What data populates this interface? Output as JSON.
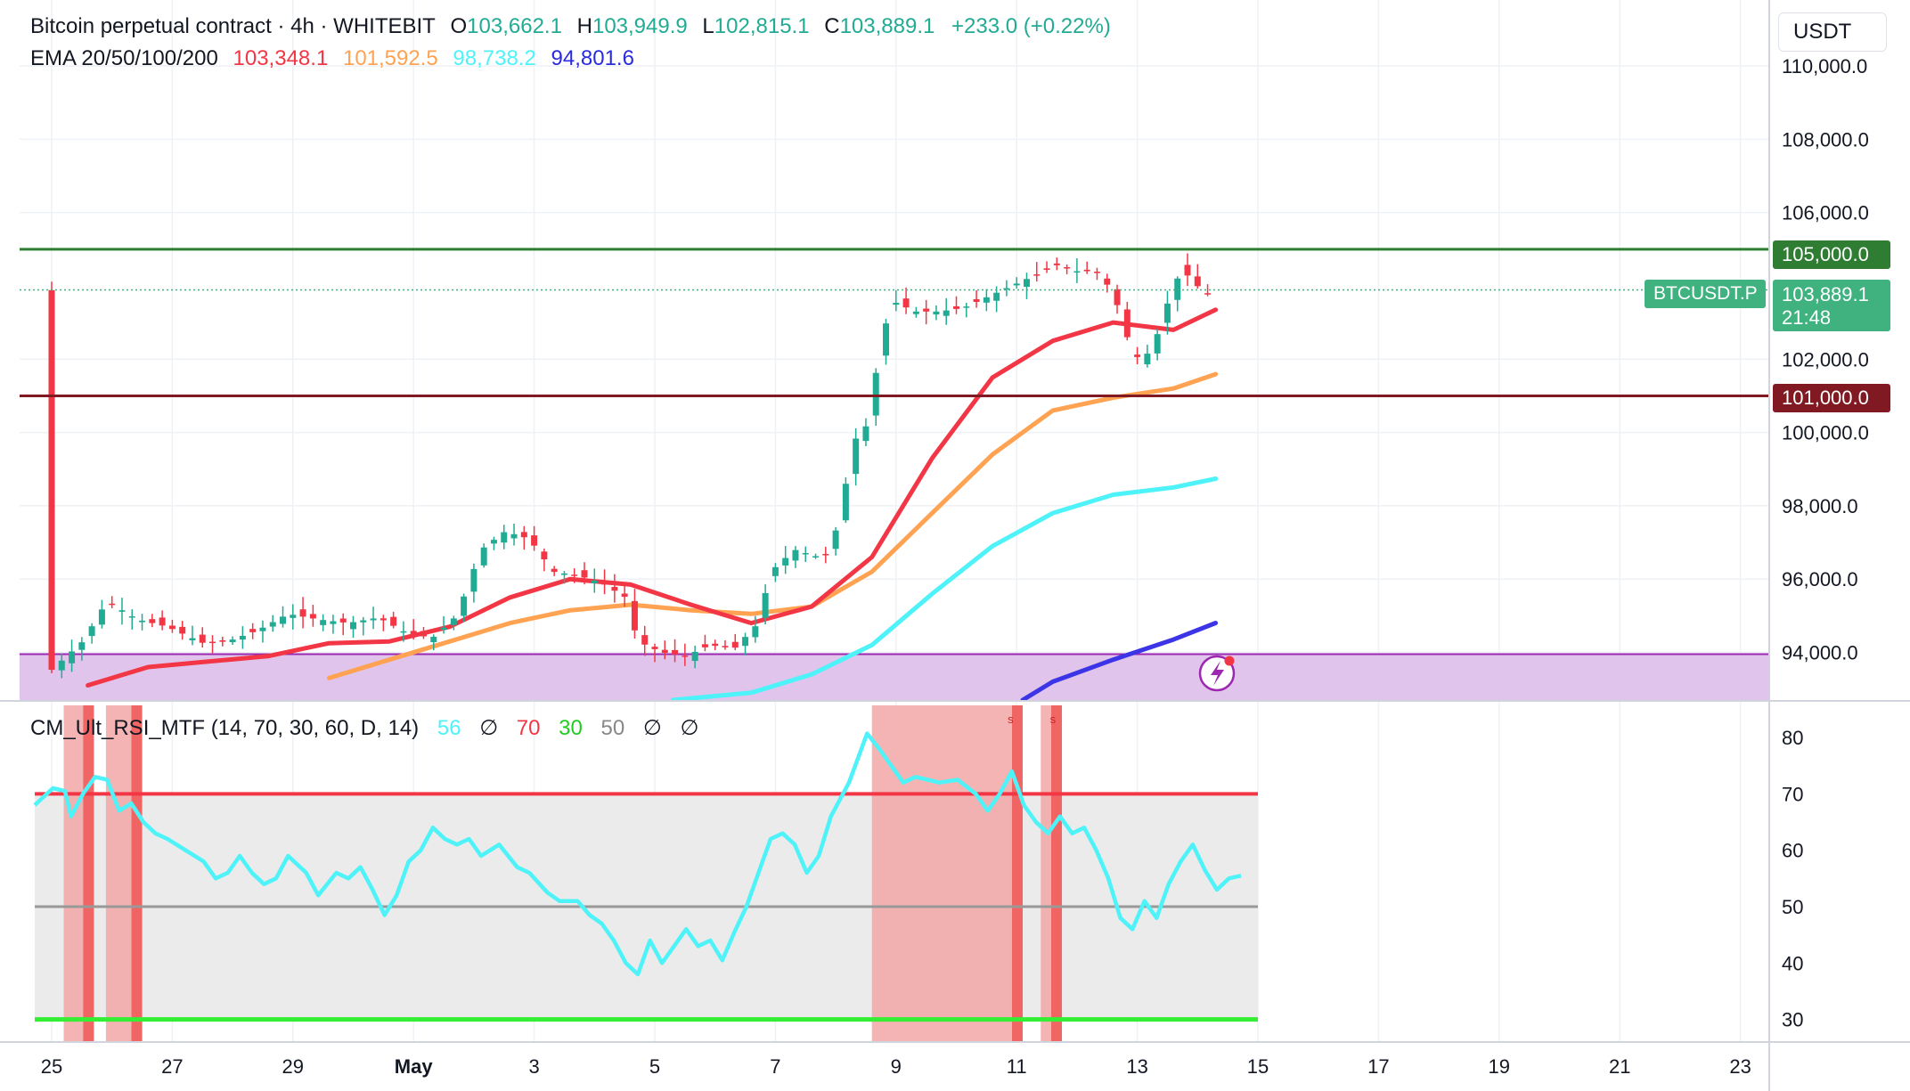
{
  "header": {
    "instrument": "Bitcoin perpetual contract · 4h · WHITEBIT",
    "ohlc": {
      "o_label": "O",
      "o": "103,662.1",
      "h_label": "H",
      "h": "103,949.9",
      "l_label": "L",
      "l": "102,815.1",
      "c_label": "C",
      "c": "103,889.1",
      "change": "+233.0 (+0.22%)"
    },
    "ema_label": "EMA 20/50/100/200",
    "ema_values": [
      "103,348.1",
      "101,592.5",
      "98,738.2",
      "94,801.6"
    ]
  },
  "currency": "USDT",
  "price_tags": {
    "resistance": "105,000.0",
    "support": "101,000.0",
    "symbol": "BTCUSDT.P",
    "last_price": "103,889.1",
    "countdown": "21:48"
  },
  "rsi_legend": {
    "name": "CM_Ult_RSI_MTF (14, 70, 30, 60, D, 14)",
    "value": "56",
    "na1": "∅",
    "ob": "70",
    "os": "30",
    "mid": "50",
    "na2": "∅",
    "na3": "∅"
  },
  "colors": {
    "up": "#22ab94",
    "down": "#f23645",
    "ema20": "#f23645",
    "ema50": "#ffa252",
    "ema100": "#4df3f8",
    "ema200": "#3b35e6",
    "resistance_line": "#2e7d32",
    "support_line": "#801922",
    "zone_fill": "#e1c4ec",
    "rsi_line": "#4df3f8",
    "rsi_ob_line": "#f23645",
    "rsi_os_line": "#33ee33",
    "rsi_mid_line": "#999999",
    "rsi_band": "#ebebeb",
    "rsi_highlight": "#f3a7a7"
  },
  "chart_data": [
    {
      "type": "candlestick",
      "title": "Bitcoin perpetual contract · 4h · WHITEBIT",
      "ylabel": "USDT",
      "ylim": [
        92700,
        111800
      ],
      "y_ticks": [
        "110,000.0",
        "108,000.0",
        "106,000.0",
        "102,000.0",
        "100,000.0",
        "98,000.0",
        "96,000.0",
        "94,000.0"
      ],
      "y_tick_values": [
        110000,
        108000,
        106000,
        102000,
        100000,
        98000,
        96000,
        94000
      ],
      "x_ticks": [
        "25",
        "27",
        "29",
        "May",
        "3",
        "5",
        "7",
        "9",
        "11",
        "13",
        "15",
        "17",
        "19",
        "21",
        "23"
      ],
      "x_tick_days": [
        0,
        2,
        4,
        6,
        8,
        10,
        12,
        14,
        16,
        18,
        20,
        22,
        24,
        26,
        28
      ],
      "x_unit": "days since Apr 25 00:00 (4h bars)",
      "horizontal_levels": [
        105000,
        101000
      ],
      "zone": [
        92700,
        93950
      ],
      "candles_ohlc": [],
      "ema": {
        "periods": [
          20,
          50,
          100,
          200
        ],
        "ema20": [
          [
            0.6,
            93100
          ],
          [
            1.6,
            93600
          ],
          [
            2.6,
            93750
          ],
          [
            3.6,
            93900
          ],
          [
            4.6,
            94250
          ],
          [
            5.6,
            94300
          ],
          [
            6.6,
            94700
          ],
          [
            7.6,
            95500
          ],
          [
            8.6,
            96000
          ],
          [
            9.6,
            95850
          ],
          [
            10.6,
            95300
          ],
          [
            11.6,
            94800
          ],
          [
            12.6,
            95250
          ],
          [
            13.6,
            96600
          ],
          [
            14.6,
            99300
          ],
          [
            15.6,
            101500
          ],
          [
            16.6,
            102500
          ],
          [
            17.6,
            103000
          ],
          [
            18.6,
            102800
          ],
          [
            19.3,
            103348
          ]
        ],
        "ema50": [
          [
            4.6,
            93300
          ],
          [
            5.6,
            93800
          ],
          [
            6.6,
            94300
          ],
          [
            7.6,
            94800
          ],
          [
            8.6,
            95150
          ],
          [
            9.6,
            95300
          ],
          [
            10.6,
            95150
          ],
          [
            11.6,
            95050
          ],
          [
            12.6,
            95250
          ],
          [
            13.6,
            96200
          ],
          [
            14.6,
            97800
          ],
          [
            15.6,
            99400
          ],
          [
            16.6,
            100600
          ],
          [
            17.6,
            100950
          ],
          [
            18.6,
            101200
          ],
          [
            19.3,
            101592
          ]
        ],
        "ema100": [
          [
            10.3,
            92700
          ],
          [
            11.6,
            92900
          ],
          [
            12.6,
            93400
          ],
          [
            13.6,
            94200
          ],
          [
            14.6,
            95600
          ],
          [
            15.6,
            96900
          ],
          [
            16.6,
            97800
          ],
          [
            17.6,
            98300
          ],
          [
            18.6,
            98500
          ],
          [
            19.3,
            98738
          ]
        ],
        "ema200": [
          [
            16.1,
            92700
          ],
          [
            16.6,
            93200
          ],
          [
            17.6,
            93800
          ],
          [
            18.6,
            94350
          ],
          [
            19.3,
            94802
          ]
        ]
      }
    },
    {
      "type": "line",
      "title": "CM_Ult_RSI_MTF (14, 70, 30, 60, D, 14)",
      "ylim": [
        26,
        86
      ],
      "y_ticks": [
        "80",
        "70",
        "60",
        "50",
        "40",
        "30"
      ],
      "y_tick_values": [
        80,
        70,
        60,
        50,
        40,
        30
      ],
      "levels": {
        "overbought": 70,
        "oversold": 30,
        "mid": 50
      },
      "rsi_series": [
        [
          0,
          68
        ],
        [
          0.3,
          71
        ],
        [
          0.5,
          70.5
        ],
        [
          0.6,
          66
        ],
        [
          0.8,
          70
        ],
        [
          1.0,
          73
        ],
        [
          1.2,
          72.5
        ],
        [
          1.4,
          67
        ],
        [
          1.6,
          68.3
        ],
        [
          1.8,
          65
        ],
        [
          2.0,
          63
        ],
        [
          2.2,
          62
        ],
        [
          2.5,
          60
        ],
        [
          2.8,
          58
        ],
        [
          3.0,
          55
        ],
        [
          3.2,
          56
        ],
        [
          3.4,
          59
        ],
        [
          3.6,
          56
        ],
        [
          3.8,
          54
        ],
        [
          4.0,
          55
        ],
        [
          4.2,
          59
        ],
        [
          4.5,
          56
        ],
        [
          4.7,
          52
        ],
        [
          5.0,
          56
        ],
        [
          5.2,
          55
        ],
        [
          5.4,
          57
        ],
        [
          5.6,
          53
        ],
        [
          5.8,
          48.5
        ],
        [
          6.0,
          52
        ],
        [
          6.2,
          58
        ],
        [
          6.4,
          60
        ],
        [
          6.6,
          64
        ],
        [
          6.8,
          62
        ],
        [
          7.0,
          61
        ],
        [
          7.2,
          62
        ],
        [
          7.4,
          59
        ],
        [
          7.7,
          61
        ],
        [
          8.0,
          57
        ],
        [
          8.2,
          56
        ],
        [
          8.5,
          52.5
        ],
        [
          8.7,
          51
        ],
        [
          9.0,
          51
        ],
        [
          9.2,
          48.5
        ],
        [
          9.4,
          47
        ],
        [
          9.6,
          44
        ],
        [
          9.8,
          40
        ],
        [
          10.0,
          38
        ],
        [
          10.2,
          44
        ],
        [
          10.4,
          40
        ],
        [
          10.6,
          43
        ],
        [
          10.8,
          46
        ],
        [
          11.0,
          43
        ],
        [
          11.2,
          44
        ],
        [
          11.4,
          40.5
        ],
        [
          11.6,
          45.5
        ],
        [
          11.8,
          50
        ],
        [
          12.0,
          56
        ],
        [
          12.2,
          62
        ],
        [
          12.4,
          63
        ],
        [
          12.6,
          61
        ],
        [
          12.8,
          56
        ],
        [
          13.0,
          59
        ],
        [
          13.2,
          66
        ],
        [
          13.5,
          72
        ],
        [
          13.8,
          80.7
        ],
        [
          14.0,
          78
        ],
        [
          14.2,
          75
        ],
        [
          14.4,
          72
        ],
        [
          14.6,
          73
        ],
        [
          14.8,
          72.5
        ],
        [
          15.0,
          72
        ],
        [
          15.3,
          72.5
        ],
        [
          15.6,
          70
        ],
        [
          15.8,
          67
        ],
        [
          16.0,
          70
        ],
        [
          16.2,
          74
        ],
        [
          16.4,
          68
        ],
        [
          16.6,
          65
        ],
        [
          16.8,
          63
        ],
        [
          17.0,
          66
        ],
        [
          17.2,
          63
        ],
        [
          17.4,
          64
        ],
        [
          17.6,
          60
        ],
        [
          17.8,
          55
        ],
        [
          18.0,
          48
        ],
        [
          18.2,
          46
        ],
        [
          18.4,
          51
        ],
        [
          18.6,
          48
        ],
        [
          18.8,
          54
        ],
        [
          19.0,
          58
        ],
        [
          19.2,
          61
        ],
        [
          19.4,
          56.5
        ],
        [
          19.6,
          53
        ],
        [
          19.8,
          55
        ],
        [
          20.0,
          55.5
        ]
      ],
      "overbought_zones": [
        [
          0.2,
          0.7
        ],
        [
          0.9,
          1.5
        ],
        [
          13.6,
          16.1
        ],
        [
          16.4,
          16.75
        ]
      ],
      "signal_markers": [
        [
          15.9,
          "s"
        ],
        [
          16.6,
          "s"
        ]
      ]
    }
  ]
}
